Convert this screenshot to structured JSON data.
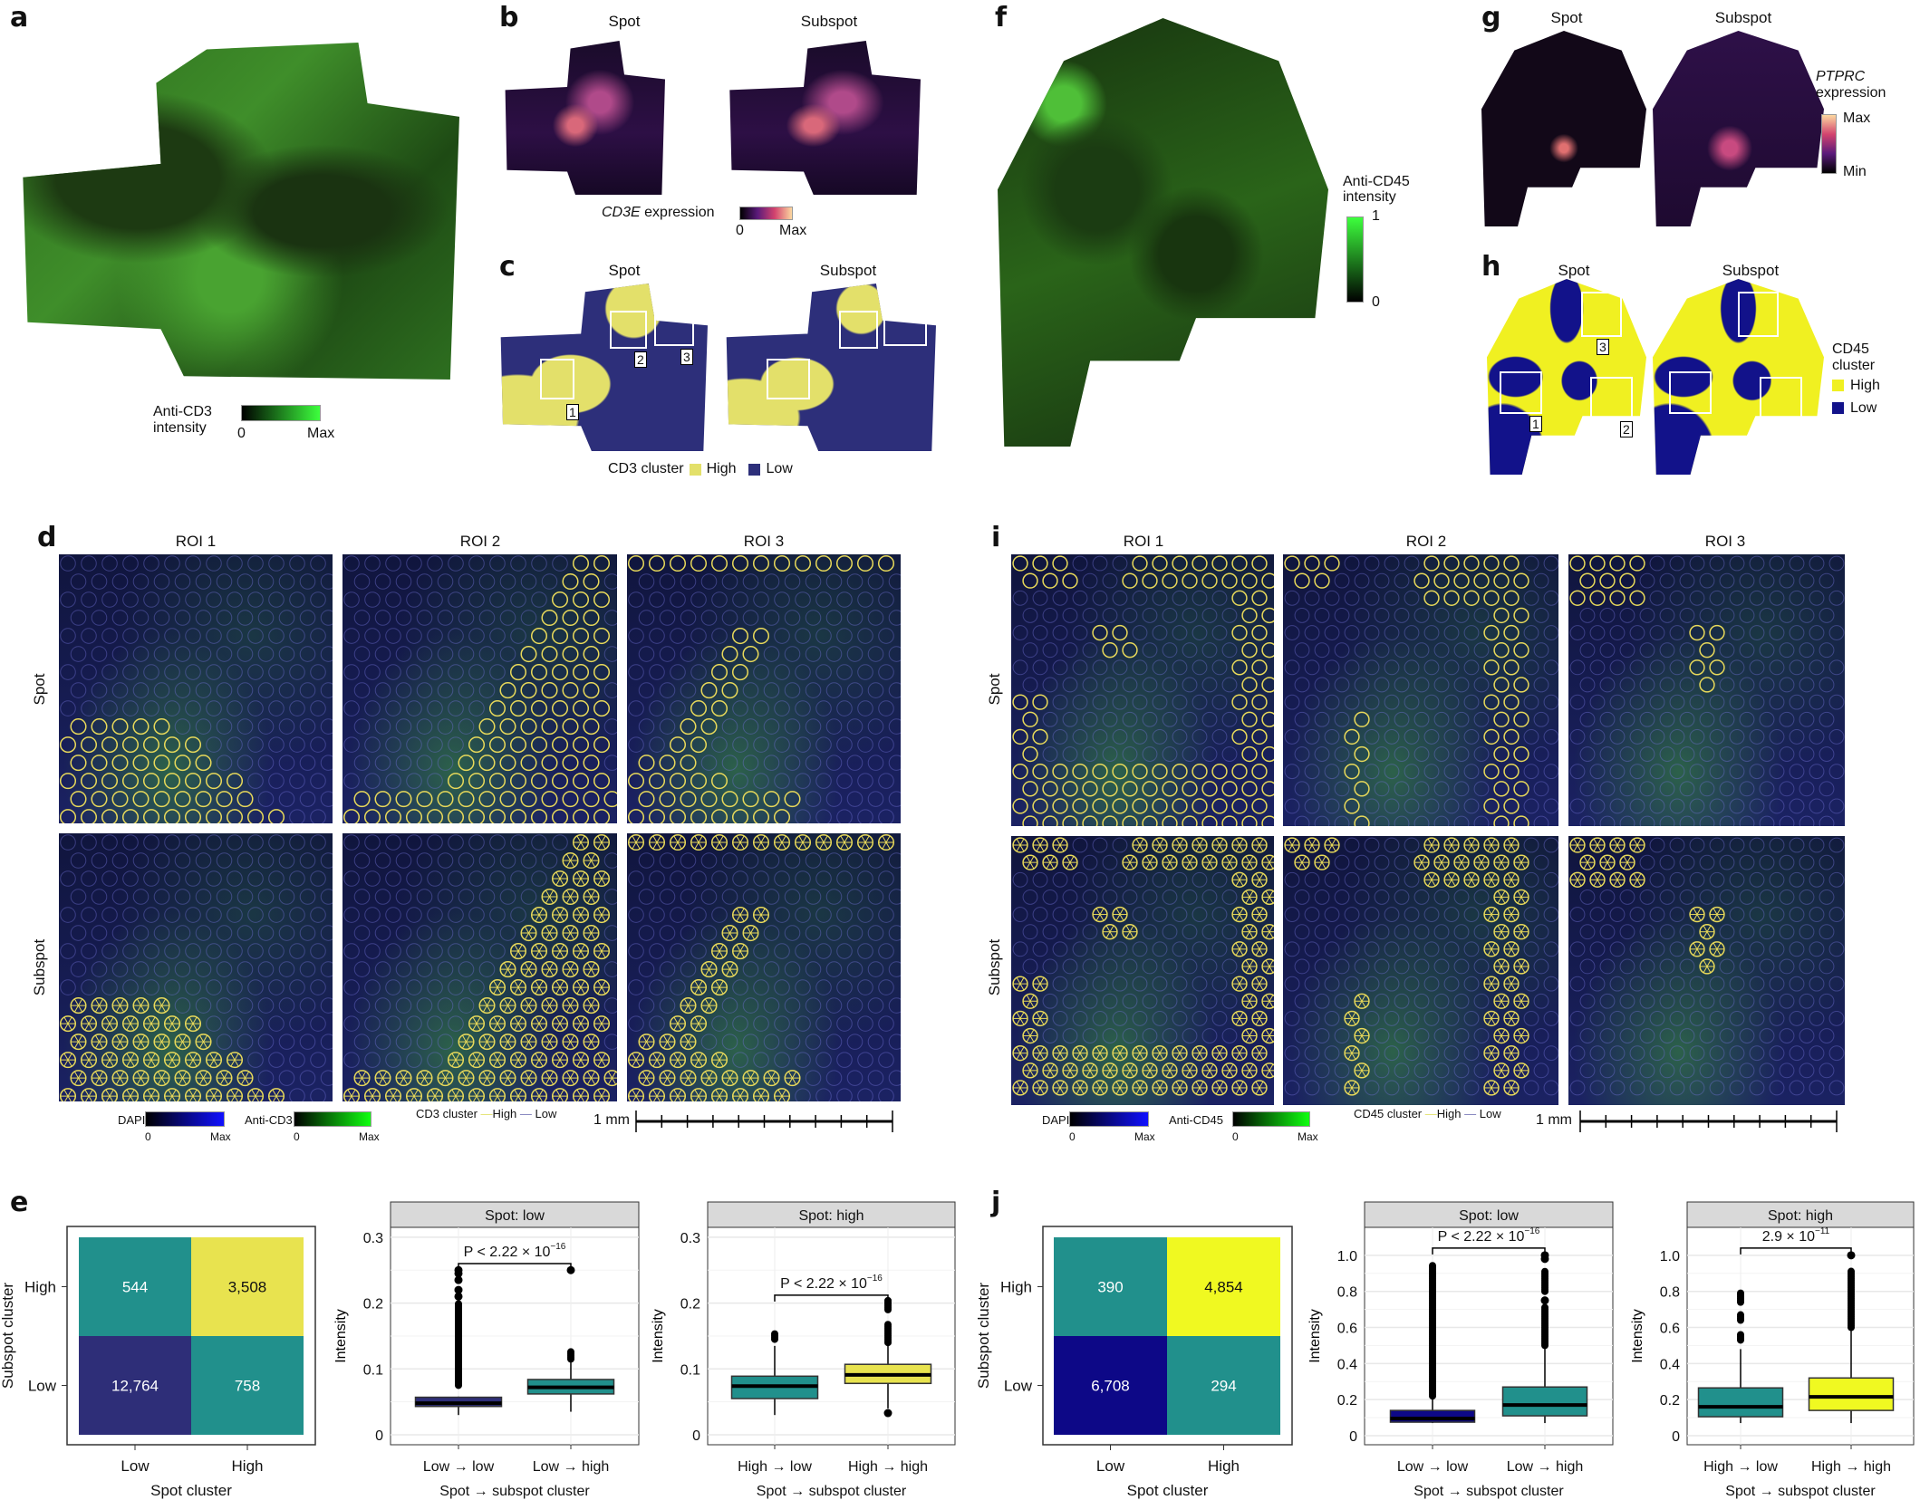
{
  "letters": {
    "a": "a",
    "b": "b",
    "c": "c",
    "d": "d",
    "e": "e",
    "f": "f",
    "g": "g",
    "h": "h",
    "i": "i",
    "j": "j"
  },
  "panel_a": {
    "legend_title_1": "Anti-CD3",
    "legend_title_2": "intensity",
    "min": "0",
    "max": "Max"
  },
  "panel_b": {
    "spot": "Spot",
    "subspot": "Subspot",
    "gene": "CD3E",
    "legend_suffix": "expression",
    "min": "0",
    "max": "Max"
  },
  "panel_c": {
    "spot": "Spot",
    "subspot": "Subspot",
    "roi_labels": [
      "1",
      "2",
      "3"
    ],
    "legend_title": "CD3 cluster",
    "high": "High",
    "low": "Low"
  },
  "panel_d": {
    "roi_headers": [
      "ROI 1",
      "ROI 2",
      "ROI 3"
    ],
    "rows": [
      "Spot",
      "Subspot"
    ],
    "dapi": "DAPI",
    "anti": "Anti-CD3",
    "min": "0",
    "max": "Max",
    "cluster_legend": "CD3 cluster",
    "high": "High",
    "low": "Low",
    "scale": "1 mm"
  },
  "panel_f": {
    "legend_title_1": "Anti-CD45",
    "legend_title_2": "intensity",
    "max": "1",
    "min": "0"
  },
  "panel_g": {
    "spot": "Spot",
    "subspot": "Subspot",
    "gene": "PTPRC",
    "legend_suffix": "expression",
    "max": "Max",
    "min": "Min"
  },
  "panel_h": {
    "spot": "Spot",
    "subspot": "Subspot",
    "roi_labels": [
      "1",
      "2",
      "3"
    ],
    "legend_title_1": "CD45",
    "legend_title_2": "cluster",
    "high": "High",
    "low": "Low"
  },
  "panel_i": {
    "roi_headers": [
      "ROI 1",
      "ROI 2",
      "ROI 3"
    ],
    "rows": [
      "Spot",
      "Subspot"
    ],
    "dapi": "DAPI",
    "anti": "Anti-CD45",
    "min": "0",
    "max": "Max",
    "cluster_legend": "CD45 cluster",
    "high": "High",
    "low": "Low",
    "scale": "1 mm"
  },
  "colors": {
    "cd3_high": "#e3e06a",
    "cd3_low": "#2d2f7a",
    "cd45_high": "#f0f021",
    "cd45_low": "#12128a",
    "teal": "#21908c",
    "circle_yellow": "#e8d95a"
  },
  "chart_data": [
    {
      "id": "e_heat",
      "type": "heatmap",
      "xlabel": "Spot cluster",
      "ylabel": "Subspot cluster",
      "x_categories": [
        "Low",
        "High"
      ],
      "y_categories": [
        "High",
        "Low"
      ],
      "cells": [
        [
          "544",
          "3,508"
        ],
        [
          "12,764",
          "758"
        ]
      ],
      "fills": [
        [
          "#21908c",
          "#e8e34f"
        ],
        [
          "#2e2e78",
          "#21908c"
        ]
      ],
      "text_colors": [
        [
          "#ffffff",
          "#111111"
        ],
        [
          "#ffffff",
          "#ffffff"
        ]
      ]
    },
    {
      "id": "e_box1",
      "type": "box",
      "strip": "Spot: low",
      "ylabel": "Intensity",
      "xlabel": "Spot → subspot cluster",
      "ylim": [
        0,
        0.315
      ],
      "yticks": [
        0,
        0.1,
        0.2,
        0.3
      ],
      "ytick_labels": [
        "0",
        "0.1",
        "0.2",
        "0.3"
      ],
      "categories": [
        "Low → low",
        "Low → high"
      ],
      "fills": [
        "#2e2e78",
        "#21908c"
      ],
      "boxes": [
        {
          "min": 0.03,
          "q1": 0.043,
          "median": 0.048,
          "q3": 0.057,
          "max": 0.058,
          "outlier_ranges": [
            [
              0.075,
              0.2
            ]
          ],
          "outliers": [
            0.21,
            0.22,
            0.235,
            0.245,
            0.25
          ]
        },
        {
          "min": 0.035,
          "q1": 0.062,
          "median": 0.072,
          "q3": 0.084,
          "max": 0.11,
          "outlier_ranges": [
            [
              0.115,
              0.127
            ]
          ],
          "outliers": [
            0.25
          ]
        }
      ],
      "p_text_prefix": "P < 2.22 × 10",
      "p_exp": "−16",
      "bracket_y": 0.26
    },
    {
      "id": "e_box2",
      "type": "box",
      "strip": "Spot: high",
      "ylabel": "Intensity",
      "xlabel": "Spot → subspot cluster",
      "ylim": [
        0,
        0.315
      ],
      "yticks": [
        0,
        0.1,
        0.2,
        0.3
      ],
      "ytick_labels": [
        "0",
        "0.1",
        "0.2",
        "0.3"
      ],
      "categories": [
        "High → low",
        "High → high"
      ],
      "fills": [
        "#21908c",
        "#e8e34f"
      ],
      "boxes": [
        {
          "min": 0.03,
          "q1": 0.055,
          "median": 0.074,
          "q3": 0.089,
          "max": 0.135,
          "outlier_ranges": [
            [
              0.145,
              0.155
            ]
          ],
          "outliers": []
        },
        {
          "min": 0.04,
          "q1": 0.078,
          "median": 0.091,
          "q3": 0.107,
          "max": 0.135,
          "outlier_ranges": [
            [
              0.14,
              0.17
            ],
            [
              0.19,
              0.205
            ]
          ],
          "outliers": [
            0.033
          ]
        }
      ],
      "p_text_prefix": "P < 2.22 × 10",
      "p_exp": "−16",
      "bracket_y": 0.212
    },
    {
      "id": "j_heat",
      "type": "heatmap",
      "xlabel": "Spot cluster",
      "ylabel": "Subspot cluster",
      "x_categories": [
        "Low",
        "High"
      ],
      "y_categories": [
        "High",
        "Low"
      ],
      "cells": [
        [
          "390",
          "4,854"
        ],
        [
          "6,708",
          "294"
        ]
      ],
      "fills": [
        [
          "#21908c",
          "#f0f921"
        ],
        [
          "#0d0887",
          "#21908c"
        ]
      ],
      "text_colors": [
        [
          "#ffffff",
          "#111111"
        ],
        [
          "#ffffff",
          "#ffffff"
        ]
      ]
    },
    {
      "id": "j_box1",
      "type": "box",
      "strip": "Spot: low",
      "ylabel": "Intensity",
      "xlabel": "Spot → subspot cluster",
      "ylim": [
        0,
        1.155
      ],
      "yticks": [
        0,
        0.2,
        0.4,
        0.6,
        0.8,
        1.0
      ],
      "ytick_labels": [
        "0",
        "0.2",
        "0.4",
        "0.6",
        "0.8",
        "1.0"
      ],
      "categories": [
        "Low → low",
        "Low → high"
      ],
      "fills": [
        "#0d0887",
        "#21908c"
      ],
      "boxes": [
        {
          "min": 0.07,
          "q1": 0.075,
          "median": 0.095,
          "q3": 0.14,
          "max": 0.22,
          "outlier_ranges": [
            [
              0.22,
              0.95
            ]
          ],
          "outliers": []
        },
        {
          "min": 0.07,
          "q1": 0.11,
          "median": 0.17,
          "q3": 0.27,
          "max": 0.5,
          "outlier_ranges": [
            [
              0.5,
              0.72
            ],
            [
              0.8,
              0.92
            ]
          ],
          "outliers": [
            0.75,
            0.98,
            1.0
          ]
        }
      ],
      "p_text_prefix": "P < 2.22 × 10",
      "p_exp": "−16",
      "bracket_y": 1.04
    },
    {
      "id": "j_box2",
      "type": "box",
      "strip": "Spot: high",
      "ylabel": "Intensity",
      "xlabel": "Spot → subspot cluster",
      "ylim": [
        0,
        1.155
      ],
      "yticks": [
        0,
        0.2,
        0.4,
        0.6,
        0.8,
        1.0
      ],
      "ytick_labels": [
        "0",
        "0.2",
        "0.4",
        "0.6",
        "0.8",
        "1.0"
      ],
      "categories": [
        "High → low",
        "High → high"
      ],
      "fills": [
        "#21908c",
        "#f0f921"
      ],
      "boxes": [
        {
          "min": 0.07,
          "q1": 0.105,
          "median": 0.16,
          "q3": 0.265,
          "max": 0.48,
          "outlier_ranges": [
            [
              0.53,
              0.57
            ],
            [
              0.64,
              0.68
            ],
            [
              0.74,
              0.8
            ]
          ],
          "outliers": []
        },
        {
          "min": 0.07,
          "q1": 0.14,
          "median": 0.215,
          "q3": 0.32,
          "max": 0.6,
          "outlier_ranges": [
            [
              0.6,
              0.92
            ]
          ],
          "outliers": [
            1.0
          ]
        }
      ],
      "p_text_prefix": "2.9 × 10",
      "p_exp": "−11",
      "bracket_y": 1.04
    }
  ]
}
